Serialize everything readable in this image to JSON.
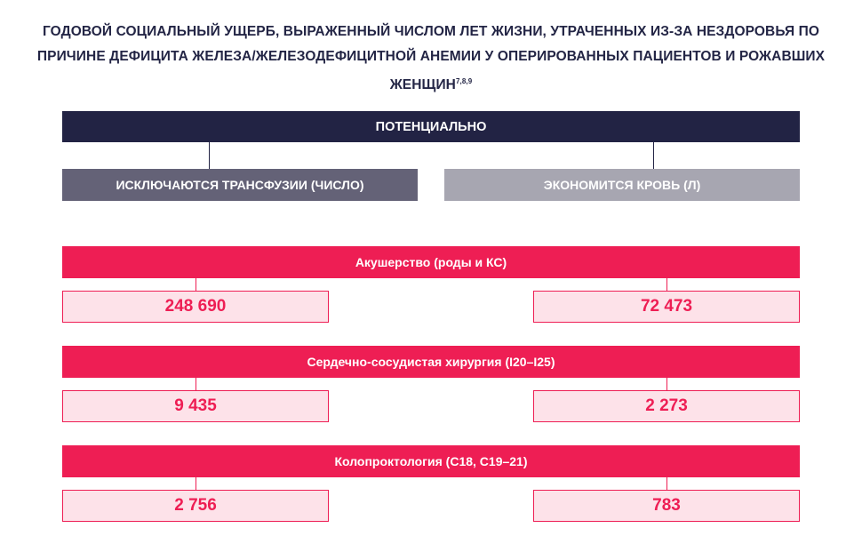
{
  "title": {
    "text": "ГОДОВОЙ СОЦИАЛЬНЫЙ УЩЕРБ, ВЫРАЖЕННЫЙ ЧИСЛОМ ЛЕТ ЖИЗНИ, УТРАЧЕННЫХ ИЗ-ЗА НЕЗДОРОВЬЯ ПО ПРИЧИНЕ ДЕФИЦИТА ЖЕЛЕЗА/ЖЕЛЕЗОДЕФИЦИТНОЙ АНЕМИИ У ОПЕРИРОВАННЫХ ПАЦИЕНТОВ И РОЖАВШИХ ЖЕНЩИН",
    "refs": "7,8,9"
  },
  "header": {
    "top": "ПОТЕНЦИАЛЬНО",
    "left": "ИСКЛЮЧАЮТСЯ ТРАНСФУЗИИ (ЧИСЛО)",
    "right": "ЭКОНОМИТСЯ КРОВЬ (Л)"
  },
  "categories": [
    {
      "label": "Акушерство (роды и КС)",
      "left_value": "248 690",
      "right_value": "72 473"
    },
    {
      "label": "Сердечно-сосудистая хирургия (I20–I25)",
      "left_value": "9 435",
      "right_value": "2 273"
    },
    {
      "label": "Колопроктология (C18, C19–21)",
      "left_value": "2 756",
      "right_value": "783"
    }
  ],
  "colors": {
    "navy": "#222344",
    "left_header": "#646277",
    "right_header": "#a7a6b1",
    "accent": "#ee1e54",
    "value_fill": "#fde2e9"
  }
}
